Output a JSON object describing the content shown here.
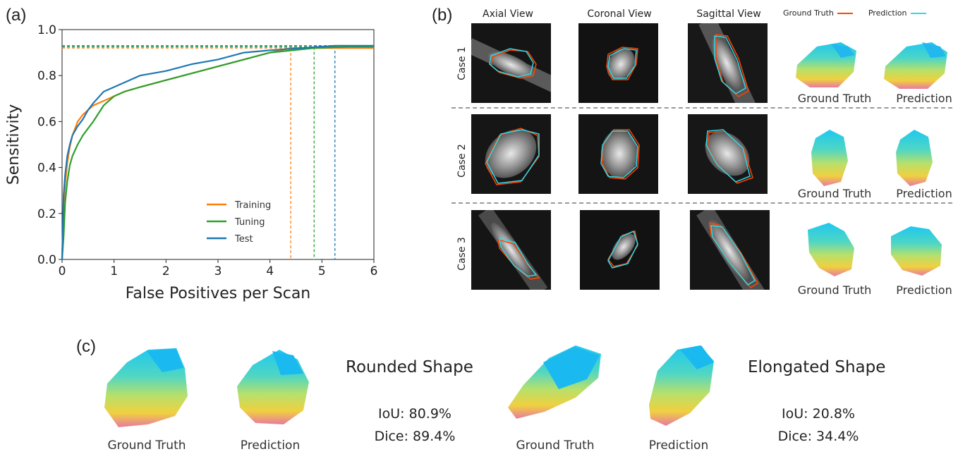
{
  "panels": {
    "a": "(a)",
    "b": "(b)",
    "c": "(c)"
  },
  "chart_data": {
    "type": "line",
    "xlabel": "False Positives per Scan",
    "ylabel": "Sensitivity",
    "xlim": [
      0,
      6
    ],
    "ylim": [
      0,
      1.0
    ],
    "xticks": [
      "0",
      "1",
      "2",
      "3",
      "4",
      "5",
      "6"
    ],
    "yticks": [
      "0.0",
      "0.2",
      "0.4",
      "0.6",
      "0.8",
      "1.0"
    ],
    "legend_position": "lower-right",
    "series": [
      {
        "name": "Training",
        "color": "#ff7f0e",
        "x": [
          0,
          0.03,
          0.06,
          0.1,
          0.15,
          0.2,
          0.3,
          0.4,
          0.5,
          0.6,
          0.8,
          1.0,
          1.2,
          1.5,
          2.0,
          2.5,
          3.0,
          3.5,
          4.0,
          4.4,
          5.0,
          6.0
        ],
        "y": [
          0.0,
          0.22,
          0.33,
          0.42,
          0.49,
          0.54,
          0.6,
          0.63,
          0.65,
          0.67,
          0.69,
          0.71,
          0.73,
          0.75,
          0.78,
          0.81,
          0.84,
          0.87,
          0.9,
          0.92,
          0.92,
          0.92
        ],
        "plateau": 0.92,
        "cutoff": 4.4
      },
      {
        "name": "Tuning",
        "color": "#2ca02c",
        "x": [
          0,
          0.03,
          0.06,
          0.1,
          0.15,
          0.2,
          0.3,
          0.4,
          0.5,
          0.6,
          0.8,
          1.0,
          1.2,
          1.5,
          2.0,
          2.5,
          3.0,
          3.5,
          4.0,
          4.85,
          5.5,
          6.0
        ],
        "y": [
          0.0,
          0.1,
          0.25,
          0.34,
          0.41,
          0.45,
          0.5,
          0.54,
          0.57,
          0.6,
          0.67,
          0.71,
          0.73,
          0.75,
          0.78,
          0.81,
          0.84,
          0.87,
          0.9,
          0.92,
          0.925,
          0.925
        ],
        "plateau": 0.925,
        "cutoff": 4.85
      },
      {
        "name": "Test",
        "color": "#1f77b4",
        "x": [
          0,
          0.03,
          0.06,
          0.1,
          0.15,
          0.2,
          0.3,
          0.4,
          0.5,
          0.6,
          0.8,
          1.0,
          1.2,
          1.5,
          2.0,
          2.5,
          3.0,
          3.5,
          4.0,
          5.25,
          6.0
        ],
        "y": [
          0.0,
          0.28,
          0.37,
          0.45,
          0.5,
          0.54,
          0.58,
          0.61,
          0.65,
          0.68,
          0.73,
          0.75,
          0.77,
          0.8,
          0.82,
          0.85,
          0.87,
          0.9,
          0.91,
          0.93,
          0.93
        ],
        "plateau": 0.93,
        "cutoff": 5.25
      }
    ]
  },
  "panel_b": {
    "views": [
      "Axial View",
      "Coronal View",
      "Sagittal View"
    ],
    "legend": {
      "gt": "Ground Truth",
      "pred": "Prediction",
      "gt_color": "#ff4500",
      "pred_color": "#2fd8e8"
    },
    "cases": [
      "Case 1",
      "Case 2",
      "Case 3"
    ],
    "gt_caption": "Ground Truth",
    "pred_caption": "Prediction"
  },
  "panel_c": {
    "left": {
      "title": "Rounded Shape",
      "iou": "IoU: 80.9%",
      "dice": "Dice: 89.4%",
      "gt_caption": "Ground Truth",
      "pred_caption": "Prediction"
    },
    "right": {
      "title": "Elongated Shape",
      "iou": "IoU: 20.8%",
      "dice": "Dice: 34.4%",
      "gt_caption": "Ground Truth",
      "pred_caption": "Prediction"
    }
  }
}
